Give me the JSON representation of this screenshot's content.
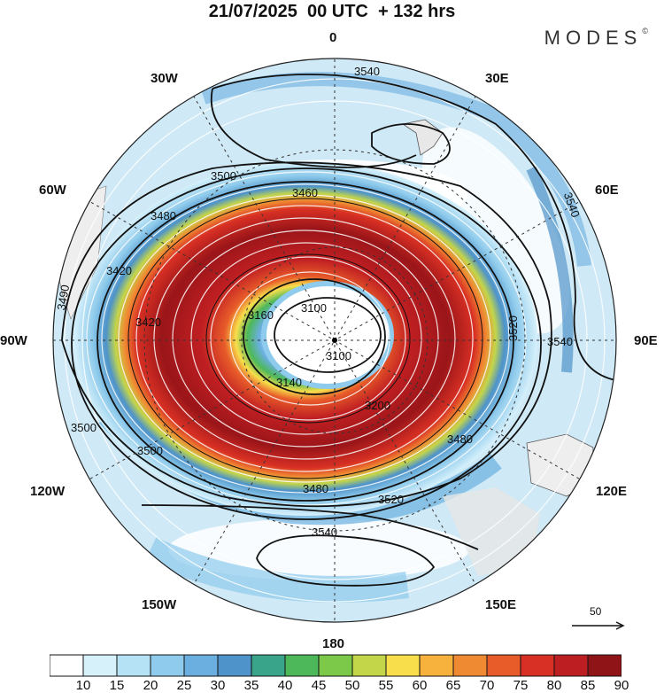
{
  "header": {
    "title": "21/07/2025  00 UTC  + 132 hrs",
    "brand": "MODES",
    "brand_mark": "©"
  },
  "map": {
    "projection": "south-polar-stereographic",
    "longitude_labels": {
      "top": "0",
      "top_right": "30E",
      "upper_right": "60E",
      "right": "90E",
      "lower_right": "120E",
      "bottom_right": "150E",
      "bottom": "180",
      "bottom_left": "150W",
      "lower_left": "120W",
      "left": "90W",
      "upper_left": "60W",
      "top_left": "30W"
    },
    "contour_labels": [
      "3540",
      "3500",
      "3480",
      "3460",
      "3420",
      "3160",
      "3100",
      "3140",
      "3200",
      "3480",
      "3500",
      "3520",
      "3540",
      "3540",
      "3520",
      "3480",
      "3500",
      "3490",
      "3420",
      "3100",
      "3540"
    ],
    "reference_vector": {
      "value": "50",
      "icon": "right-arrow-icon"
    }
  },
  "colorbar": {
    "ticks": [
      "10",
      "15",
      "20",
      "25",
      "30",
      "35",
      "40",
      "45",
      "50",
      "55",
      "60",
      "65",
      "70",
      "75",
      "80",
      "85",
      "90"
    ],
    "colors": [
      "#ffffff",
      "#d7f1fb",
      "#b5e3f5",
      "#8fcbec",
      "#6aafe0",
      "#4e93c9",
      "#3aa48a",
      "#4db85a",
      "#7cc94a",
      "#c3d64a",
      "#f7de4a",
      "#f6b23c",
      "#f08a32",
      "#e85c2a",
      "#d83024",
      "#bc1e22",
      "#8e1418"
    ]
  }
}
